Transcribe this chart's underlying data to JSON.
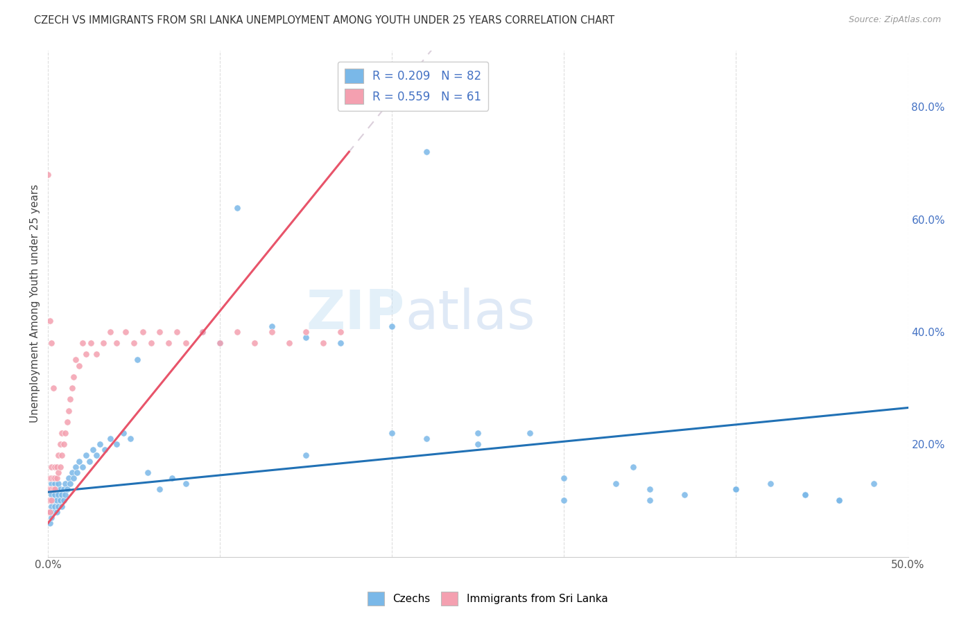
{
  "title": "CZECH VS IMMIGRANTS FROM SRI LANKA UNEMPLOYMENT AMONG YOUTH UNDER 25 YEARS CORRELATION CHART",
  "source": "Source: ZipAtlas.com",
  "ylabel": "Unemployment Among Youth under 25 years",
  "xlim": [
    0.0,
    0.5
  ],
  "ylim": [
    0.0,
    0.9
  ],
  "x_tick_pos": [
    0.0,
    0.1,
    0.2,
    0.3,
    0.4,
    0.5
  ],
  "x_tick_labels": [
    "0.0%",
    "",
    "",
    "",
    "",
    "50.0%"
  ],
  "y_tick_pos": [
    0.0,
    0.2,
    0.4,
    0.6,
    0.8
  ],
  "y_tick_labels": [
    "",
    "20.0%",
    "40.0%",
    "60.0%",
    "80.0%"
  ],
  "grid_color": "#dddddd",
  "background_color": "#ffffff",
  "color_czech": "#7ab8e8",
  "color_sri_lanka": "#f4a0b0",
  "color_line_czech": "#2171b5",
  "color_line_sri_lanka": "#e8546a",
  "color_dash_sri_lanka": "#ccbbcc",
  "label_czech": "Czechs",
  "label_sri_lanka": "Immigrants from Sri Lanka",
  "czech_x": [
    0.001,
    0.001,
    0.001,
    0.001,
    0.002,
    0.002,
    0.002,
    0.002,
    0.003,
    0.003,
    0.003,
    0.003,
    0.004,
    0.004,
    0.004,
    0.005,
    0.005,
    0.005,
    0.006,
    0.006,
    0.006,
    0.007,
    0.007,
    0.008,
    0.008,
    0.009,
    0.009,
    0.01,
    0.01,
    0.011,
    0.012,
    0.013,
    0.014,
    0.015,
    0.016,
    0.017,
    0.018,
    0.02,
    0.022,
    0.024,
    0.026,
    0.028,
    0.03,
    0.033,
    0.036,
    0.04,
    0.044,
    0.048,
    0.052,
    0.058,
    0.065,
    0.072,
    0.08,
    0.09,
    0.1,
    0.11,
    0.13,
    0.15,
    0.17,
    0.2,
    0.22,
    0.25,
    0.28,
    0.3,
    0.33,
    0.35,
    0.37,
    0.4,
    0.42,
    0.44,
    0.46,
    0.48,
    0.3,
    0.35,
    0.4,
    0.44,
    0.46,
    0.34,
    0.25,
    0.2,
    0.22,
    0.15
  ],
  "czech_y": [
    0.08,
    0.06,
    0.1,
    0.12,
    0.07,
    0.09,
    0.11,
    0.13,
    0.08,
    0.1,
    0.12,
    0.14,
    0.09,
    0.11,
    0.13,
    0.08,
    0.1,
    0.12,
    0.09,
    0.11,
    0.13,
    0.1,
    0.12,
    0.09,
    0.11,
    0.1,
    0.12,
    0.11,
    0.13,
    0.12,
    0.14,
    0.13,
    0.15,
    0.14,
    0.16,
    0.15,
    0.17,
    0.16,
    0.18,
    0.17,
    0.19,
    0.18,
    0.2,
    0.19,
    0.21,
    0.2,
    0.22,
    0.21,
    0.35,
    0.15,
    0.12,
    0.14,
    0.13,
    0.4,
    0.38,
    0.62,
    0.41,
    0.39,
    0.38,
    0.41,
    0.72,
    0.2,
    0.22,
    0.14,
    0.13,
    0.12,
    0.11,
    0.12,
    0.13,
    0.11,
    0.1,
    0.13,
    0.1,
    0.1,
    0.12,
    0.11,
    0.1,
    0.16,
    0.22,
    0.22,
    0.21,
    0.18
  ],
  "sri_lanka_x": [
    0.0,
    0.0,
    0.0,
    0.001,
    0.001,
    0.001,
    0.001,
    0.002,
    0.002,
    0.002,
    0.002,
    0.003,
    0.003,
    0.004,
    0.004,
    0.004,
    0.005,
    0.005,
    0.006,
    0.006,
    0.007,
    0.007,
    0.008,
    0.008,
    0.009,
    0.01,
    0.011,
    0.012,
    0.013,
    0.014,
    0.015,
    0.016,
    0.018,
    0.02,
    0.022,
    0.025,
    0.028,
    0.032,
    0.036,
    0.04,
    0.045,
    0.05,
    0.055,
    0.06,
    0.065,
    0.07,
    0.075,
    0.08,
    0.09,
    0.1,
    0.11,
    0.12,
    0.13,
    0.14,
    0.15,
    0.16,
    0.17,
    0.0,
    0.001,
    0.002,
    0.003
  ],
  "sri_lanka_y": [
    0.08,
    0.1,
    0.12,
    0.08,
    0.1,
    0.12,
    0.14,
    0.1,
    0.12,
    0.14,
    0.16,
    0.12,
    0.14,
    0.12,
    0.14,
    0.16,
    0.14,
    0.16,
    0.15,
    0.18,
    0.16,
    0.2,
    0.18,
    0.22,
    0.2,
    0.22,
    0.24,
    0.26,
    0.28,
    0.3,
    0.32,
    0.35,
    0.34,
    0.38,
    0.36,
    0.38,
    0.36,
    0.38,
    0.4,
    0.38,
    0.4,
    0.38,
    0.4,
    0.38,
    0.4,
    0.38,
    0.4,
    0.38,
    0.4,
    0.38,
    0.4,
    0.38,
    0.4,
    0.38,
    0.4,
    0.38,
    0.4,
    0.68,
    0.42,
    0.38,
    0.3
  ],
  "czech_line_x": [
    0.0,
    0.5
  ],
  "czech_line_y": [
    0.115,
    0.265
  ],
  "sri_line_x": [
    0.0,
    0.175
  ],
  "sri_line_y": [
    0.06,
    0.72
  ]
}
